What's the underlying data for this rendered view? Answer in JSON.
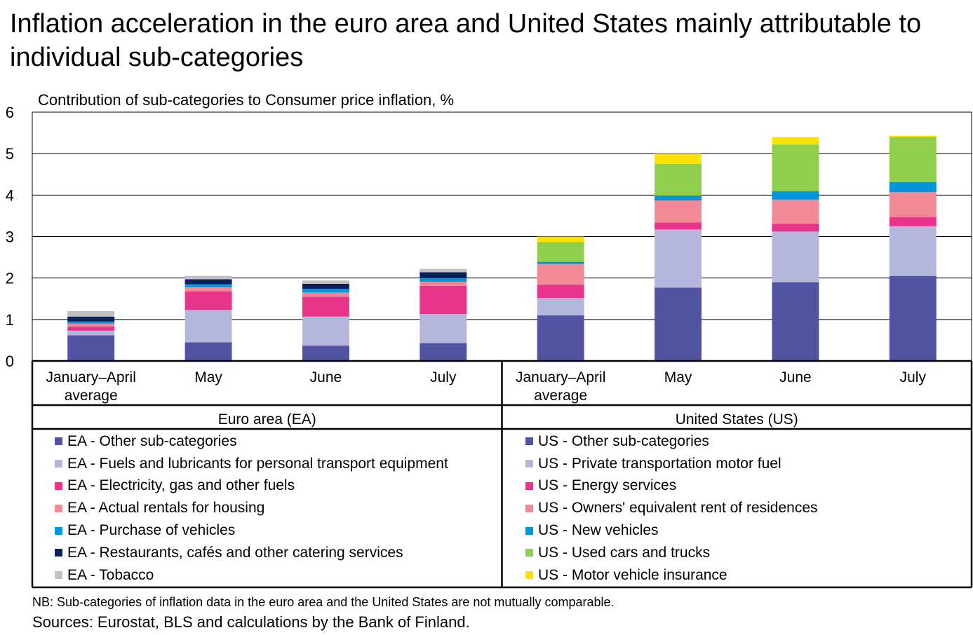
{
  "title": "Inflation acceleration in the euro area and United States mainly attributable to individual sub-categories",
  "subtitle": "Contribution of sub-categories to Consumer price inflation, %",
  "note": "NB: Sub-categories of inflation data in the euro area and the United States are not mutually  comparable.",
  "sources": "Sources: Eurostat, BLS and calculations by the Bank of Finland.",
  "chart_data": {
    "type": "bar",
    "stacked": true,
    "ylim": [
      0,
      6
    ],
    "yticks": [
      0,
      1,
      2,
      3,
      4,
      5,
      6
    ],
    "grid": true,
    "legend_position": "bottom",
    "groups": [
      {
        "name": "Euro area (EA)",
        "categories": [
          [
            "January–April",
            "average"
          ],
          [
            "May"
          ],
          [
            "June"
          ],
          [
            "July"
          ]
        ],
        "series": [
          {
            "name": "EA - Other sub-categories",
            "color": "#5054a2",
            "values": [
              0.62,
              0.45,
              0.37,
              0.43
            ]
          },
          {
            "name": "EA - Fuels and lubricants for personal transport equipment",
            "color": "#b4b6dc",
            "values": [
              0.11,
              0.78,
              0.7,
              0.7
            ]
          },
          {
            "name": "EA - Electricity, gas and other fuels",
            "color": "#e8338a",
            "values": [
              0.1,
              0.45,
              0.48,
              0.68
            ]
          },
          {
            "name": "EA - Actual rentals for housing",
            "color": "#f08a94",
            "values": [
              0.07,
              0.1,
              0.1,
              0.1
            ]
          },
          {
            "name": "EA - Purchase of vehicles",
            "color": "#0096db",
            "values": [
              0.05,
              0.07,
              0.09,
              0.09
            ]
          },
          {
            "name": "EA - Restaurants, cafés and other catering services",
            "color": "#0b1f5c",
            "values": [
              0.12,
              0.12,
              0.12,
              0.14
            ]
          },
          {
            "name": "EA - Tobacco",
            "color": "#c0c0c0",
            "values": [
              0.13,
              0.08,
              0.08,
              0.08
            ]
          }
        ]
      },
      {
        "name": "United States (US)",
        "categories": [
          [
            "January–April",
            "average"
          ],
          [
            "May"
          ],
          [
            "June"
          ],
          [
            "July"
          ]
        ],
        "series": [
          {
            "name": "US - Other sub-categories",
            "color": "#5054a2",
            "values": [
              1.1,
              1.77,
              1.9,
              2.05
            ]
          },
          {
            "name": "US - Private transportation motor fuel",
            "color": "#b4b6dc",
            "values": [
              0.42,
              1.4,
              1.22,
              1.2
            ]
          },
          {
            "name": "US - Energy services",
            "color": "#e8338a",
            "values": [
              0.32,
              0.17,
              0.19,
              0.22
            ]
          },
          {
            "name": "US - Owners' equivalent rent of residences",
            "color": "#f08a94",
            "values": [
              0.5,
              0.53,
              0.58,
              0.6
            ]
          },
          {
            "name": "US - New vehicles",
            "color": "#0096db",
            "values": [
              0.05,
              0.12,
              0.2,
              0.24
            ]
          },
          {
            "name": "US - Used cars and trucks",
            "color": "#8fcf4b",
            "values": [
              0.48,
              0.76,
              1.13,
              1.09
            ]
          },
          {
            "name": "US - Motor vehicle insurance",
            "color": "#ffe100",
            "values": [
              0.13,
              0.25,
              0.18,
              0.03
            ]
          }
        ]
      }
    ]
  }
}
